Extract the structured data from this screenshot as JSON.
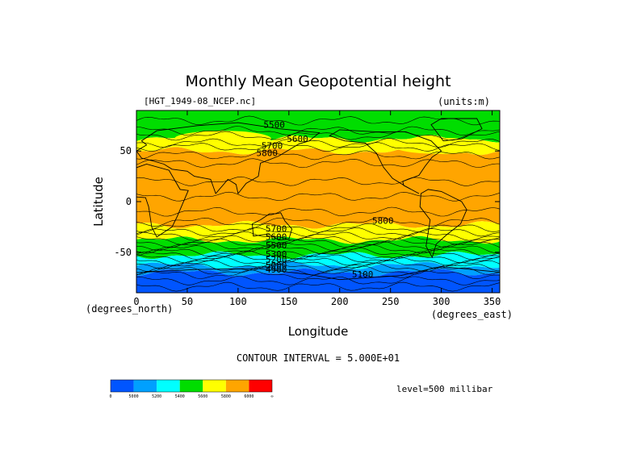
{
  "chart_data": {
    "type": "heatmap",
    "title": "Monthly Mean Geopotential height",
    "file_label": "[HGT_1949-08_NCEP.nc]",
    "units_label": "(units:m)",
    "xlabel": "Longitude",
    "ylabel": "Latitude",
    "x_units_label": "(degrees_east)",
    "y_units_label": "(degrees_north)",
    "xlim": [
      0,
      357.5
    ],
    "ylim": [
      -90,
      90
    ],
    "x_ticks": [
      0,
      50,
      100,
      150,
      200,
      250,
      300,
      350
    ],
    "y_ticks": [
      50,
      0,
      -50
    ],
    "contour_interval_text": "CONTOUR INTERVAL = 5.000E+01",
    "level_text": "level=500 millibar",
    "contour_labels": [
      {
        "text": "5500",
        "lon": 125,
        "lat": 73
      },
      {
        "text": "5600",
        "lon": 148,
        "lat": 59
      },
      {
        "text": "5700",
        "lon": 123,
        "lat": 52
      },
      {
        "text": "5800",
        "lon": 118,
        "lat": 45
      },
      {
        "text": "5800",
        "lon": 232,
        "lat": -22
      },
      {
        "text": "5700",
        "lon": 127,
        "lat": -30
      },
      {
        "text": "5600",
        "lon": 127,
        "lat": -38
      },
      {
        "text": "5500",
        "lon": 127,
        "lat": -46
      },
      {
        "text": "5300",
        "lon": 127,
        "lat": -55
      },
      {
        "text": "5200",
        "lon": 127,
        "lat": -60
      },
      {
        "text": "5000",
        "lon": 127,
        "lat": -66
      },
      {
        "text": "4900",
        "lon": 127,
        "lat": -70
      },
      {
        "text": "5100",
        "lon": 212,
        "lat": -75
      }
    ],
    "bands": [
      {
        "name": "> 6000",
        "color": "#ff0000"
      },
      {
        "name": "5800-6000",
        "color": "#ffa500"
      },
      {
        "name": "5600-5800",
        "color": "#ffff00"
      },
      {
        "name": "5400-5600",
        "color": "#00dd00"
      },
      {
        "name": "5200-5400",
        "color": "#00ffff"
      },
      {
        "name": "5000-5200",
        "color": "#00a0ff"
      },
      {
        "name": "< 5000",
        "color": "#0055ff"
      }
    ],
    "colorbar": {
      "colors": [
        "#0055ff",
        "#00a0ff",
        "#00ffff",
        "#00dd00",
        "#ffff00",
        "#ffa500",
        "#ff0000"
      ],
      "labels": [
        "0",
        "5000",
        "5200",
        "5400",
        "5600",
        "5800",
        "6000",
        "∞"
      ]
    },
    "zones": [
      {
        "lat_top": 90,
        "lat_bot": 62,
        "band": "5400-5600",
        "color": "#00dd00"
      },
      {
        "lat_top": 62,
        "lat_bot": 50,
        "band": "5600-5800",
        "color": "#ffff00"
      },
      {
        "lat_top": 50,
        "lat_bot": -23,
        "band": "5800-6000",
        "color": "#ffa500"
      },
      {
        "lat_top": -23,
        "lat_bot": -38,
        "band": "5600-5800",
        "color": "#ffff00"
      },
      {
        "lat_top": -38,
        "lat_bot": -53,
        "band": "5400-5600",
        "color": "#00dd00"
      },
      {
        "lat_top": -53,
        "lat_bot": -63,
        "band": "5200-5400",
        "color": "#00ffff"
      },
      {
        "lat_top": -63,
        "lat_bot": -70,
        "band": "5000-5200",
        "color": "#00a0ff"
      },
      {
        "lat_top": -70,
        "lat_bot": -90,
        "band": "< 5000",
        "color": "#0055ff"
      }
    ]
  }
}
